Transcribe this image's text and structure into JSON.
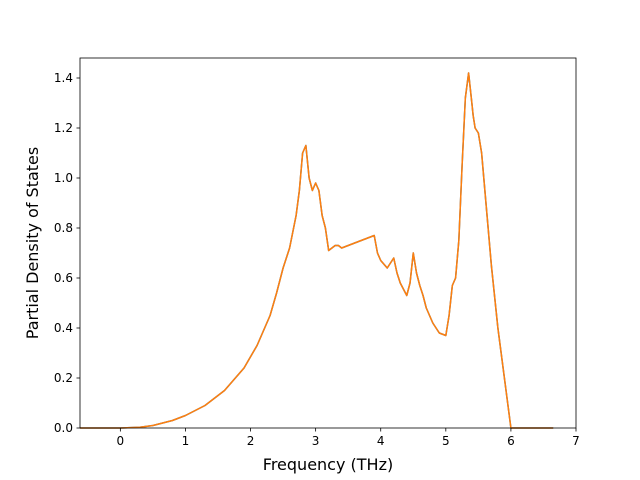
{
  "chart_data": {
    "type": "line",
    "title": "",
    "xlabel": "Frequency (THz)",
    "ylabel": "Partial Density of States",
    "xlim": [
      -0.62,
      7.0
    ],
    "ylim": [
      0.0,
      1.48
    ],
    "xticks": [
      "0",
      "1",
      "2",
      "3",
      "4",
      "5",
      "6",
      "7"
    ],
    "xtick_values": [
      0,
      1,
      2,
      3,
      4,
      5,
      6,
      7
    ],
    "yticks": [
      "0.0",
      "0.2",
      "0.4",
      "0.6",
      "0.8",
      "1.0",
      "1.2",
      "1.4"
    ],
    "ytick_values": [
      0.0,
      0.2,
      0.4,
      0.6,
      0.8,
      1.0,
      1.2,
      1.4
    ],
    "grid": false,
    "legend": "none",
    "series": [
      {
        "color": "#1f77b4",
        "x": [
          -0.62,
          0.0,
          0.3,
          0.5,
          0.8,
          1.0,
          1.3,
          1.6,
          1.9,
          2.1,
          2.3,
          2.4,
          2.5,
          2.6,
          2.7,
          2.75,
          2.8,
          2.85,
          2.9,
          2.95,
          3.0,
          3.05,
          3.1,
          3.15,
          3.2,
          3.25,
          3.3,
          3.35,
          3.4,
          3.5,
          3.6,
          3.7,
          3.8,
          3.9,
          3.95,
          4.0,
          4.1,
          4.2,
          4.25,
          4.3,
          4.4,
          4.45,
          4.5,
          4.55,
          4.6,
          4.65,
          4.7,
          4.8,
          4.9,
          5.0,
          5.05,
          5.1,
          5.15,
          5.2,
          5.25,
          5.3,
          5.35,
          5.4,
          5.42,
          5.45,
          5.5,
          5.55,
          5.6,
          5.65,
          5.7,
          5.8,
          5.9,
          6.0,
          6.05,
          6.1,
          6.2,
          6.4,
          6.65
        ],
        "y": [
          0.0,
          0.0,
          0.003,
          0.01,
          0.03,
          0.05,
          0.09,
          0.15,
          0.24,
          0.33,
          0.45,
          0.54,
          0.64,
          0.72,
          0.85,
          0.95,
          1.1,
          1.13,
          1.0,
          0.95,
          0.98,
          0.95,
          0.85,
          0.8,
          0.71,
          0.72,
          0.73,
          0.73,
          0.72,
          0.73,
          0.74,
          0.75,
          0.76,
          0.77,
          0.7,
          0.67,
          0.64,
          0.68,
          0.62,
          0.58,
          0.53,
          0.58,
          0.7,
          0.62,
          0.57,
          0.53,
          0.48,
          0.42,
          0.38,
          0.37,
          0.45,
          0.57,
          0.6,
          0.75,
          1.05,
          1.32,
          1.42,
          1.3,
          1.25,
          1.2,
          1.18,
          1.1,
          0.95,
          0.8,
          0.65,
          0.4,
          0.2,
          0.0,
          0.0,
          0.0,
          0.0,
          0.0,
          0.0
        ]
      },
      {
        "color": "#ff7f0e",
        "x": [
          -0.62,
          0.0,
          0.3,
          0.5,
          0.8,
          1.0,
          1.3,
          1.6,
          1.9,
          2.1,
          2.3,
          2.4,
          2.5,
          2.6,
          2.7,
          2.75,
          2.8,
          2.85,
          2.9,
          2.95,
          3.0,
          3.05,
          3.1,
          3.15,
          3.2,
          3.25,
          3.3,
          3.35,
          3.4,
          3.5,
          3.6,
          3.7,
          3.8,
          3.9,
          3.95,
          4.0,
          4.1,
          4.2,
          4.25,
          4.3,
          4.4,
          4.45,
          4.5,
          4.55,
          4.6,
          4.65,
          4.7,
          4.8,
          4.9,
          5.0,
          5.05,
          5.1,
          5.15,
          5.2,
          5.25,
          5.3,
          5.35,
          5.4,
          5.42,
          5.45,
          5.5,
          5.55,
          5.6,
          5.65,
          5.7,
          5.8,
          5.9,
          6.0,
          6.05,
          6.1,
          6.2,
          6.4,
          6.65
        ],
        "y": [
          0.0,
          0.0,
          0.003,
          0.01,
          0.03,
          0.05,
          0.09,
          0.15,
          0.24,
          0.33,
          0.45,
          0.54,
          0.64,
          0.72,
          0.85,
          0.95,
          1.1,
          1.13,
          1.0,
          0.95,
          0.98,
          0.95,
          0.85,
          0.8,
          0.71,
          0.72,
          0.73,
          0.73,
          0.72,
          0.73,
          0.74,
          0.75,
          0.76,
          0.77,
          0.7,
          0.67,
          0.64,
          0.68,
          0.62,
          0.58,
          0.53,
          0.58,
          0.7,
          0.62,
          0.57,
          0.53,
          0.48,
          0.42,
          0.38,
          0.37,
          0.45,
          0.57,
          0.6,
          0.75,
          1.05,
          1.32,
          1.42,
          1.3,
          1.25,
          1.2,
          1.18,
          1.1,
          0.95,
          0.8,
          0.65,
          0.4,
          0.2,
          0.0,
          0.0,
          0.0,
          0.0,
          0.0,
          0.0
        ]
      }
    ]
  }
}
